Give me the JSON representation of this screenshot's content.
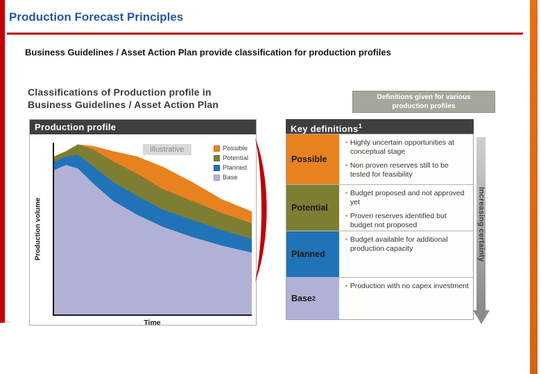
{
  "slide": {
    "title": "Production Forecast Principles",
    "subtitle": "Business Guidelines / Asset Action Plan provide classification for production profiles",
    "footnote_marks": "––"
  },
  "left_panel": {
    "heading_line1": "Classifications of Production profile in",
    "heading_line2": "Business Guidelines / Asset Action Plan",
    "chart_header": "Production profile"
  },
  "right_panel": {
    "definitions_note_line1": "Definitions given for various",
    "definitions_note_line2": "production profiles",
    "header": "Key definitions",
    "header_sup": "1",
    "arrow_label": "Increasing certainty",
    "rows": [
      {
        "label": "Possible",
        "label_sup": "",
        "color": "#E8821E",
        "bullets": [
          "Highly uncertain opportunities at conceptual stage",
          "Non proven reserves still to be tested for feasibility"
        ]
      },
      {
        "label": "Potential",
        "label_sup": "",
        "color": "#7E7E33",
        "bullets": [
          "Budget proposed and not approved yet",
          "Proven reserves identified but budget not proposed"
        ]
      },
      {
        "label": "Planned",
        "label_sup": "",
        "color": "#2173B8",
        "bullets": [
          "Budget available for additional production capacity"
        ]
      },
      {
        "label": "Base",
        "label_sup": "2",
        "color": "#B1B1D8",
        "bullets": [
          "Production with no capex investment"
        ]
      }
    ]
  },
  "chart_data": {
    "type": "area",
    "stacked": true,
    "title": "Production profile",
    "annotation": "Illustrative",
    "xlabel": "Time",
    "ylabel": "Production volume",
    "ylim": [
      0,
      1
    ],
    "x": [
      0,
      0.06,
      0.12,
      0.2,
      0.3,
      0.42,
      0.55,
      0.7,
      0.85,
      1.0
    ],
    "series": [
      {
        "name": "Base",
        "color": "#B1B1D8",
        "values": [
          0.84,
          0.87,
          0.85,
          0.76,
          0.66,
          0.58,
          0.51,
          0.45,
          0.4,
          0.36
        ]
      },
      {
        "name": "Planned",
        "color": "#2173B8",
        "values": [
          0.05,
          0.05,
          0.08,
          0.1,
          0.11,
          0.11,
          0.1,
          0.1,
          0.09,
          0.08
        ]
      },
      {
        "name": "Potential",
        "color": "#7E7E33",
        "values": [
          0.03,
          0.03,
          0.06,
          0.1,
          0.12,
          0.13,
          0.12,
          0.11,
          0.1,
          0.09
        ]
      },
      {
        "name": "Possible",
        "color": "#E8821E",
        "values": [
          0.0,
          0.0,
          0.0,
          0.02,
          0.06,
          0.1,
          0.13,
          0.11,
          0.08,
          0.07
        ]
      }
    ],
    "legend_order": [
      "Possible",
      "Potential",
      "Planned",
      "Base"
    ],
    "legend_position": "top-right",
    "grid": false
  },
  "colors": {
    "accent_red": "#C00000",
    "accent_orange": "#DE6F1E",
    "title_blue": "#2456A4",
    "header_dark": "#3F3F3F",
    "note_gray": "#A6A69B",
    "bullet": "#C0504D"
  }
}
